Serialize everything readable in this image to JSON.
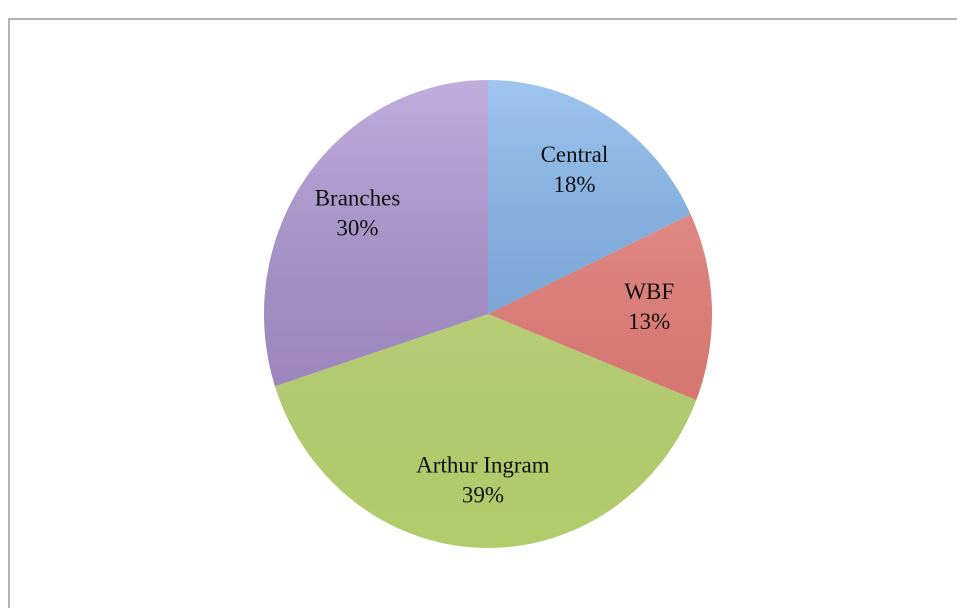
{
  "chart_data": {
    "type": "pie",
    "categories": [
      "Central",
      "WBF",
      "Arthur Ingram",
      "Branches"
    ],
    "values": [
      18,
      13,
      39,
      30
    ],
    "value_labels": [
      "18%",
      "13%",
      "39%",
      "30%"
    ],
    "colors": [
      "#79aee9",
      "#ec7c76",
      "#c2de74",
      "#a88ed0"
    ]
  }
}
